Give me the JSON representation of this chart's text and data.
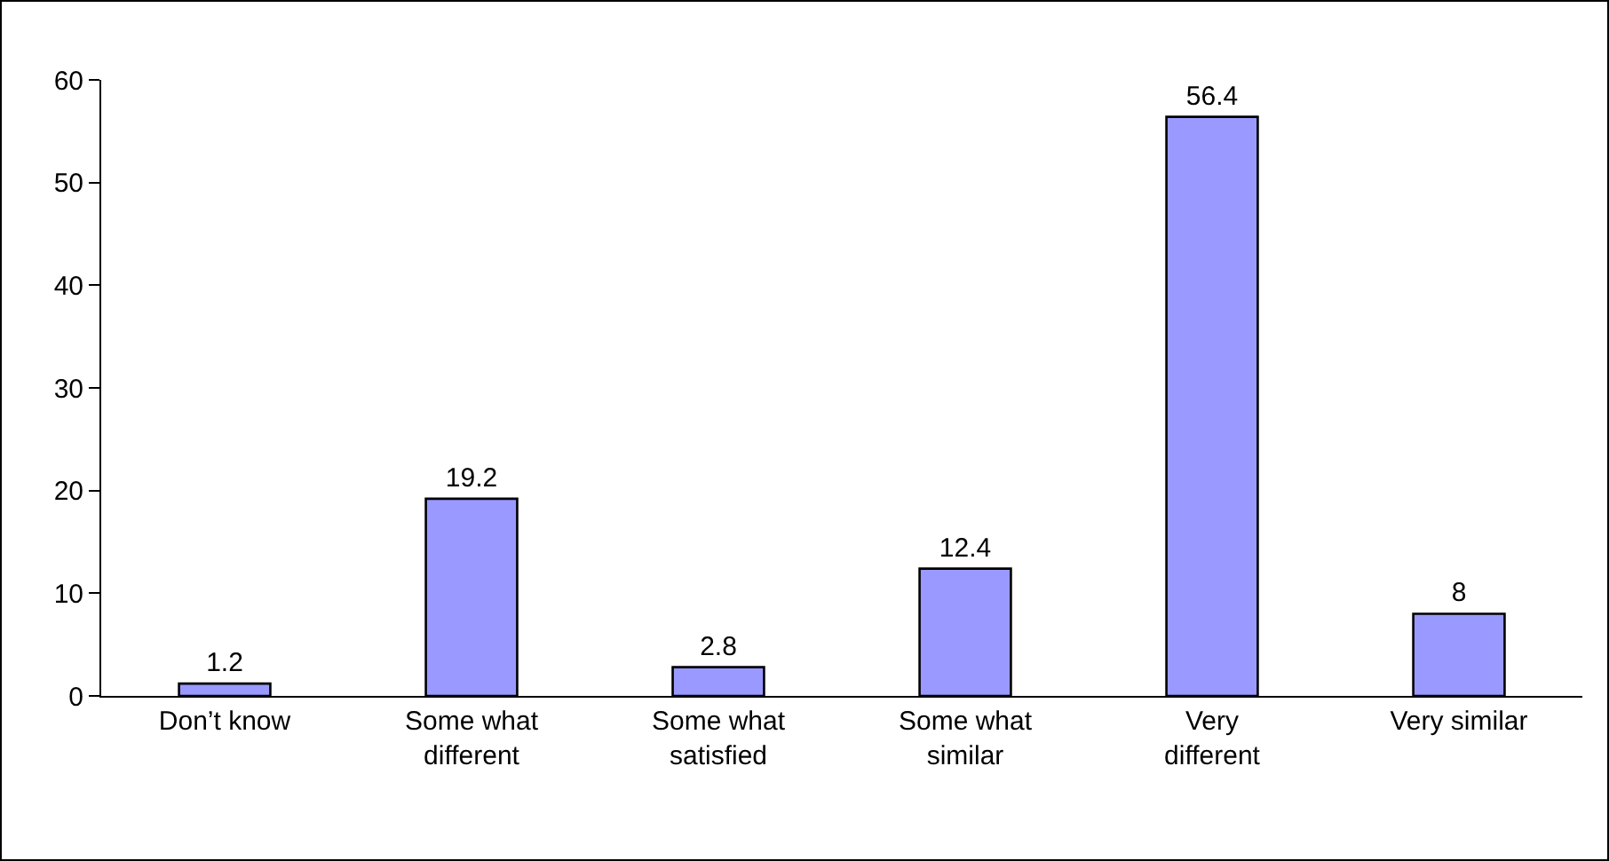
{
  "chart_data": {
    "type": "bar",
    "categories": [
      "Don’t know",
      "Some what different",
      "Some what satisfied",
      "Some what similar",
      "Very different",
      "Very similar"
    ],
    "values": [
      1.2,
      19.2,
      2.8,
      12.4,
      56.4,
      8
    ],
    "color": "#9999ff",
    "ylim": [
      0,
      60
    ],
    "yticks": [
      0,
      10,
      20,
      30,
      40,
      50,
      60
    ],
    "grid": false,
    "data_labels": true
  }
}
